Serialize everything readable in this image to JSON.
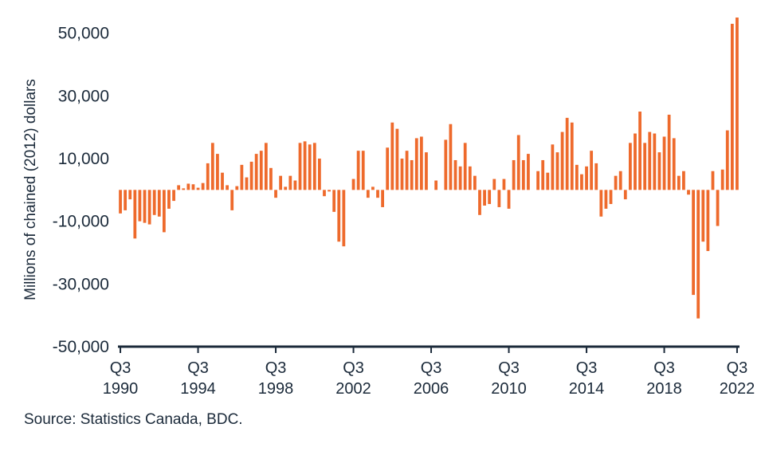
{
  "chart_data": {
    "type": "bar",
    "ylabel": "Millions of chained (2012) dollars",
    "ylim": [
      -50000,
      55000
    ],
    "yticks": [
      50000,
      30000,
      10000,
      -10000,
      -30000,
      -50000
    ],
    "ytick_labels": [
      "50,000",
      "30,000",
      "10,000",
      "-10,000",
      "-30,000",
      "-50,000"
    ],
    "xtick_labels": [
      {
        "quarter": "Q3",
        "year": "1990"
      },
      {
        "quarter": "Q3",
        "year": "1994"
      },
      {
        "quarter": "Q3",
        "year": "1998"
      },
      {
        "quarter": "Q3",
        "year": "2002"
      },
      {
        "quarter": "Q3",
        "year": "2006"
      },
      {
        "quarter": "Q3",
        "year": "2010"
      },
      {
        "quarter": "Q3",
        "year": "2014"
      },
      {
        "quarter": "Q3",
        "year": "2018"
      },
      {
        "quarter": "Q3",
        "year": "2022"
      }
    ],
    "first_period": "1990 Q3",
    "last_period": "2022 Q3",
    "bar_color": "#ee6a2c",
    "axis_color": "#1b2a3a",
    "grid": false,
    "values": [
      -7500,
      -6500,
      -3000,
      -15500,
      -10000,
      -10500,
      -11000,
      -8000,
      -8500,
      -13500,
      -6000,
      -3500,
      1500,
      500,
      2000,
      1800,
      700,
      2200,
      8500,
      15000,
      11500,
      5500,
      1500,
      -6500,
      1200,
      8000,
      4000,
      9000,
      11500,
      12500,
      15000,
      7000,
      -2500,
      4500,
      1000,
      4500,
      3000,
      15000,
      15500,
      14500,
      15000,
      10000,
      -2000,
      -500,
      -7000,
      -16500,
      -18000,
      null,
      3500,
      12500,
      12500,
      -2500,
      1000,
      -2500,
      -5500,
      13500,
      21500,
      19500,
      10000,
      12500,
      9500,
      16500,
      17000,
      12000,
      null,
      3000,
      null,
      16000,
      21000,
      9500,
      7500,
      15000,
      7500,
      4500,
      -8000,
      -5000,
      -4500,
      3500,
      -5500,
      3500,
      -6000,
      9500,
      17500,
      9500,
      11500,
      null,
      6000,
      9500,
      5500,
      14500,
      12000,
      18500,
      23000,
      21500,
      8000,
      5000,
      7500,
      12500,
      8500,
      -8500,
      -6000,
      -4500,
      4500,
      6000,
      -3000,
      15000,
      18000,
      25000,
      15000,
      18500,
      18000,
      12000,
      17000,
      24000,
      16500,
      4500,
      6000,
      -1500,
      -33500,
      -41000,
      -16500,
      -19500,
      6000,
      -11500,
      6500,
      19000,
      53000,
      55000
    ]
  },
  "source_note": "Source: Statistics Canada, BDC."
}
